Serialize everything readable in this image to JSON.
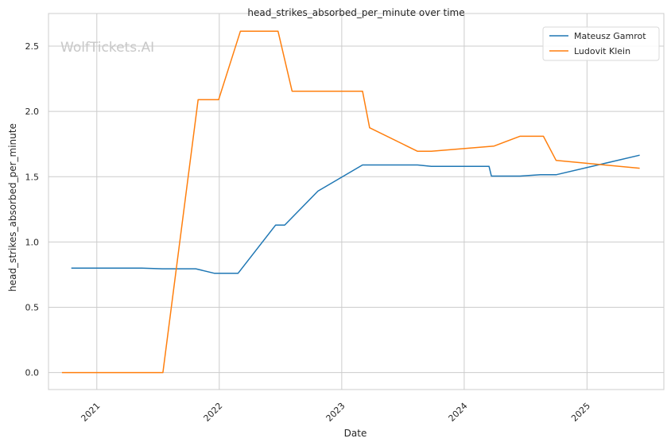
{
  "chart_data": {
    "type": "line",
    "title": "head_strikes_absorbed_per_minute over time",
    "xlabel": "Date",
    "ylabel": "head_strikes_absorbed_per_minute",
    "watermark": "WolfTickets.AI",
    "x_ticks": [
      "2021",
      "2022",
      "2023",
      "2024",
      "2025"
    ],
    "y_ticks": [
      "0.0",
      "0.5",
      "1.0",
      "1.5",
      "2.0",
      "2.5"
    ],
    "ylim": [
      -0.13,
      2.75
    ],
    "xlim": [
      "2020-08-10",
      "2025-08-18"
    ],
    "grid": true,
    "legend_position": "top-right",
    "series": [
      {
        "name": "Mateusz Gamrot",
        "color": "#1f77b4",
        "points": [
          [
            "2020-10-17",
            0.8
          ],
          [
            "2021-05-15",
            0.8
          ],
          [
            "2021-07-15",
            0.795
          ],
          [
            "2021-10-23",
            0.795
          ],
          [
            "2021-12-18",
            0.76
          ],
          [
            "2022-02-26",
            0.76
          ],
          [
            "2022-06-18",
            1.13
          ],
          [
            "2022-07-15",
            1.13
          ],
          [
            "2022-10-22",
            1.39
          ],
          [
            "2023-03-04",
            1.59
          ],
          [
            "2023-08-15",
            1.59
          ],
          [
            "2023-09-25",
            1.58
          ],
          [
            "2024-03-15",
            1.58
          ],
          [
            "2024-03-22",
            1.505
          ],
          [
            "2024-06-15",
            1.505
          ],
          [
            "2024-08-15",
            1.515
          ],
          [
            "2024-10-01",
            1.515
          ],
          [
            "2025-06-07",
            1.665
          ]
        ]
      },
      {
        "name": "Ludovit Klein",
        "color": "#ff7f0e",
        "points": [
          [
            "2020-09-19",
            0.0
          ],
          [
            "2021-07-17",
            0.0
          ],
          [
            "2021-10-30",
            2.09
          ],
          [
            "2021-12-30",
            2.09
          ],
          [
            "2022-03-05",
            2.615
          ],
          [
            "2022-06-25",
            2.615
          ],
          [
            "2022-08-06",
            2.155
          ],
          [
            "2023-03-04",
            2.155
          ],
          [
            "2023-03-25",
            1.875
          ],
          [
            "2023-08-15",
            1.695
          ],
          [
            "2023-09-25",
            1.695
          ],
          [
            "2024-03-30",
            1.735
          ],
          [
            "2024-06-15",
            1.81
          ],
          [
            "2024-08-24",
            1.81
          ],
          [
            "2024-10-01",
            1.625
          ],
          [
            "2025-06-07",
            1.565
          ]
        ]
      }
    ]
  }
}
